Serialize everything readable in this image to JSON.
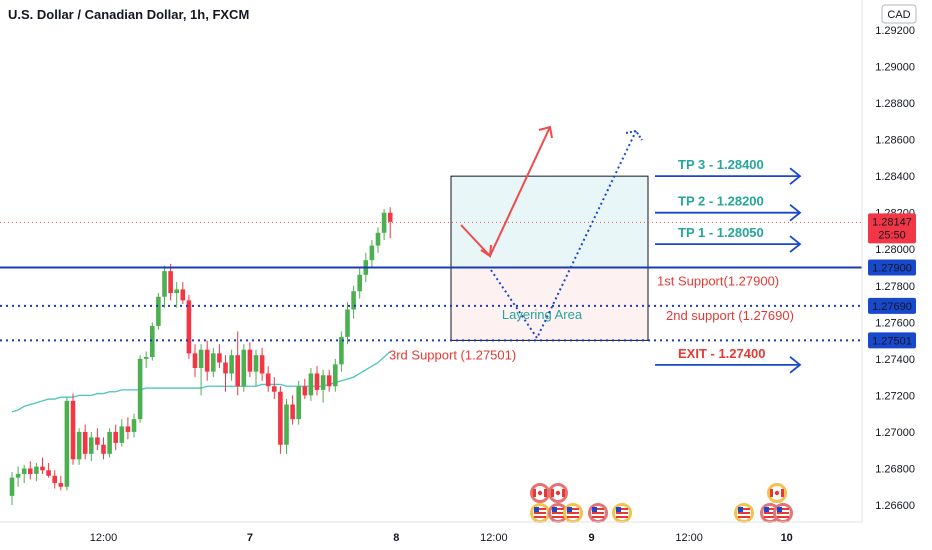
{
  "header": {
    "title": "U.S. Dollar / Canadian Dollar, 1h, FXCM",
    "currency_badge": "CAD"
  },
  "colors": {
    "bull": "#26a69a",
    "bull_candle": "#4caf50",
    "bear": "#ef5350",
    "bear_candle": "#f23645",
    "line_blue": "#1b3bb5",
    "accent_blue": "#1848cc",
    "arrow_red": "#f04b4b",
    "ma_teal": "#4dc3c3",
    "teal_text": "#26a69a",
    "red_text": "#e53935"
  },
  "chart_data": {
    "type": "candlestick",
    "symbol": "U.S. Dollar / Canadian Dollar",
    "timeframe": "1h",
    "source": "FXCM",
    "y_axis": {
      "ticks": [
        "1.29200",
        "1.29000",
        "1.28800",
        "1.28600",
        "1.28400",
        "1.28200",
        "1.28000",
        "1.27800",
        "1.27600",
        "1.27400",
        "1.27200",
        "1.27000",
        "1.26800",
        "1.26600"
      ],
      "range": [
        1.2652,
        1.2935
      ]
    },
    "x_axis": {
      "labels": [
        {
          "label": "12:00",
          "bar": 15
        },
        {
          "label": "7",
          "bar": 39
        },
        {
          "label": "8",
          "bar": 63
        },
        {
          "label": "12:00",
          "bar": 79
        },
        {
          "label": "9",
          "bar": 95
        },
        {
          "label": "12:00",
          "bar": 111
        },
        {
          "label": "10",
          "bar": 127
        }
      ]
    },
    "candles": [
      [
        1.2665,
        1.2678,
        1.266,
        1.2675
      ],
      [
        1.2675,
        1.2681,
        1.267,
        1.2677
      ],
      [
        1.2677,
        1.2682,
        1.2672,
        1.268
      ],
      [
        1.268,
        1.2684,
        1.2674,
        1.2677
      ],
      [
        1.2677,
        1.2683,
        1.2673,
        1.2681
      ],
      [
        1.2681,
        1.2686,
        1.2677,
        1.2679
      ],
      [
        1.2679,
        1.2683,
        1.2675,
        1.2676
      ],
      [
        1.2676,
        1.2679,
        1.2669,
        1.2672
      ],
      [
        1.2672,
        1.2676,
        1.2668,
        1.267
      ],
      [
        1.267,
        1.2719,
        1.2668,
        1.2717
      ],
      [
        1.2717,
        1.2721,
        1.2682,
        1.2685
      ],
      [
        1.2685,
        1.2702,
        1.2682,
        1.27
      ],
      [
        1.27,
        1.2704,
        1.2685,
        1.2688
      ],
      [
        1.2688,
        1.27,
        1.2684,
        1.2697
      ],
      [
        1.2697,
        1.2702,
        1.269,
        1.2693
      ],
      [
        1.2693,
        1.2697,
        1.2685,
        1.2688
      ],
      [
        1.2688,
        1.2702,
        1.2686,
        1.27
      ],
      [
        1.27,
        1.2704,
        1.269,
        1.2694
      ],
      [
        1.2694,
        1.2707,
        1.2692,
        1.2703
      ],
      [
        1.2703,
        1.2708,
        1.2696,
        1.27
      ],
      [
        1.27,
        1.271,
        1.2697,
        1.2707
      ],
      [
        1.2707,
        1.2742,
        1.2705,
        1.274
      ],
      [
        1.274,
        1.2744,
        1.2735,
        1.2741
      ],
      [
        1.2741,
        1.276,
        1.2739,
        1.2758
      ],
      [
        1.2758,
        1.2776,
        1.2756,
        1.2774
      ],
      [
        1.2774,
        1.2791,
        1.2768,
        1.2788
      ],
      [
        1.2788,
        1.2792,
        1.2772,
        1.2776
      ],
      [
        1.2776,
        1.2782,
        1.2768,
        1.2778
      ],
      [
        1.2778,
        1.2782,
        1.277,
        1.2772
      ],
      [
        1.2772,
        1.2775,
        1.274,
        1.2743
      ],
      [
        1.2743,
        1.2748,
        1.273,
        1.2735
      ],
      [
        1.2735,
        1.2748,
        1.272,
        1.2745
      ],
      [
        1.2745,
        1.275,
        1.2728,
        1.2733
      ],
      [
        1.2733,
        1.2746,
        1.273,
        1.2743
      ],
      [
        1.2743,
        1.2748,
        1.2735,
        1.2738
      ],
      [
        1.2738,
        1.2742,
        1.2722,
        1.2732
      ],
      [
        1.2732,
        1.2745,
        1.2728,
        1.2742
      ],
      [
        1.2742,
        1.2755,
        1.272,
        1.2725
      ],
      [
        1.2725,
        1.2748,
        1.2722,
        1.2745
      ],
      [
        1.2745,
        1.2749,
        1.273,
        1.2733
      ],
      [
        1.2733,
        1.2745,
        1.2725,
        1.2742
      ],
      [
        1.2742,
        1.2746,
        1.2728,
        1.2732
      ],
      [
        1.2732,
        1.2736,
        1.2722,
        1.2725
      ],
      [
        1.2725,
        1.273,
        1.2718,
        1.2722
      ],
      [
        1.2722,
        1.2725,
        1.2688,
        1.2693
      ],
      [
        1.2693,
        1.2718,
        1.2688,
        1.2715
      ],
      [
        1.2715,
        1.272,
        1.2704,
        1.2707
      ],
      [
        1.2707,
        1.2728,
        1.2704,
        1.2725
      ],
      [
        1.2725,
        1.2729,
        1.2718,
        1.272
      ],
      [
        1.272,
        1.2735,
        1.2717,
        1.2732
      ],
      [
        1.2732,
        1.2736,
        1.272,
        1.2723
      ],
      [
        1.2723,
        1.2734,
        1.2716,
        1.2731
      ],
      [
        1.2731,
        1.2734,
        1.2722,
        1.2725
      ],
      [
        1.2725,
        1.274,
        1.2722,
        1.2737
      ],
      [
        1.2737,
        1.2755,
        1.2733,
        1.2752
      ],
      [
        1.2752,
        1.2771,
        1.2748,
        1.2767
      ],
      [
        1.2767,
        1.278,
        1.2762,
        1.2777
      ],
      [
        1.2777,
        1.279,
        1.2773,
        1.2786
      ],
      [
        1.2786,
        1.2798,
        1.2782,
        1.2794
      ],
      [
        1.2794,
        1.2805,
        1.279,
        1.2802
      ],
      [
        1.2802,
        1.2812,
        1.2798,
        1.2809
      ],
      [
        1.2809,
        1.2822,
        1.2805,
        1.282
      ],
      [
        1.282,
        1.2823,
        1.2806,
        1.2815
      ]
    ],
    "moving_average": [
      1.2711,
      1.2712,
      1.2714,
      1.2715,
      1.2716,
      1.2717,
      1.2718,
      1.2718,
      1.2719,
      1.2719,
      1.2719,
      1.272,
      1.272,
      1.272,
      1.2721,
      1.2721,
      1.2722,
      1.2722,
      1.2723,
      1.2723,
      1.2723,
      1.2723,
      1.2724,
      1.2724,
      1.2724,
      1.2724,
      1.2724,
      1.2724,
      1.2724,
      1.2724,
      1.2724,
      1.2724,
      1.2725,
      1.2725,
      1.2725,
      1.2725,
      1.2725,
      1.2725,
      1.2725,
      1.2725,
      1.2725,
      1.2726,
      1.2726,
      1.2726,
      1.2726,
      1.2725,
      1.2725,
      1.2725,
      1.2725,
      1.2725,
      1.2725,
      1.2725,
      1.2726,
      1.2727,
      1.2728,
      1.2729,
      1.273,
      1.2732,
      1.2734,
      1.2736,
      1.2738,
      1.2741,
      1.2744
    ],
    "price_tags": [
      {
        "label": "1.28147",
        "sub": "25:50",
        "value": 1.28147,
        "color": "#f23645"
      },
      {
        "label": "1.27900",
        "value": 1.279,
        "color": "#1848cc"
      },
      {
        "label": "1.27690",
        "value": 1.2769,
        "color": "#1848cc"
      },
      {
        "label": "1.27501",
        "value": 1.27501,
        "color": "#1848cc"
      }
    ],
    "levels": [
      {
        "label": "1st Support(1.27900)",
        "value": 1.279,
        "style": "solid"
      },
      {
        "label": "2nd support (1.27690)",
        "value": 1.2769,
        "style": "dotted"
      },
      {
        "label": "3rd Support (1.27501)",
        "value": 1.27501,
        "style": "dotted"
      }
    ],
    "targets": [
      {
        "label": "TP 3 - 1.28400",
        "value": 1.284,
        "color": "#26a69a"
      },
      {
        "label": "TP 2 - 1.28200",
        "value": 1.282,
        "color": "#26a69a"
      },
      {
        "label": "TP 1 - 1.28050",
        "value": 1.2805,
        "color": "#26a69a"
      },
      {
        "label": "EXIT - 1.27400",
        "value": 1.274,
        "color": "#e53935"
      }
    ],
    "zone_label": "Layering Area",
    "position_box": {
      "entry": 1.279,
      "target": 1.284,
      "stop": 1.27501
    }
  }
}
